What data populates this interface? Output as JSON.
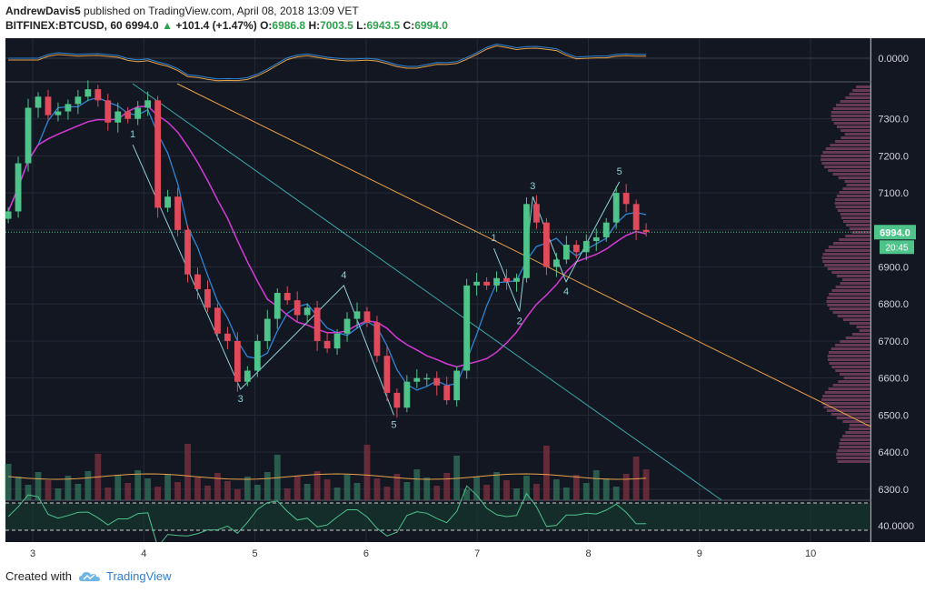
{
  "header": {
    "author": "AndrewDavis5",
    "published_text": "published on TradingView.com, April 08, 2018 13:09 VET"
  },
  "symbol_line": {
    "symbol": "BITFINEX:BTCUSD, 60",
    "last": "6994.0",
    "arrow": "▲",
    "change": "+101.4 (+1.47%)",
    "o_label": "O:",
    "o_value": "6986.8",
    "h_label": "H:",
    "h_value": "7003.5",
    "l_label": "L:",
    "l_value": "6943.5",
    "c_label": "C:",
    "c_value": "6994.0"
  },
  "footer": {
    "created_with": "Created with",
    "brand": "TradingView"
  },
  "colors": {
    "background": "#131722",
    "up": "#4ec38a",
    "down": "#e04a5a",
    "ma_fast": "#2f86d8",
    "ma_slow": "#d63ad6",
    "trend_orange": "#e8a24a",
    "trend_teal": "#3aa9a9",
    "wave": "#8fd0d8",
    "price_badge": "#4ec38a"
  },
  "chart_data": {
    "type": "candlestick",
    "symbol": "BITFINEX:BTCUSD",
    "timeframe": "60",
    "x_ticks": [
      "3",
      "4",
      "5",
      "6",
      "7",
      "8",
      "9",
      "10"
    ],
    "x_tick_days": [
      3,
      4,
      5,
      6,
      7,
      8,
      9,
      10
    ],
    "x_range": [
      2.75,
      10.6
    ],
    "price_ticks": [
      "7300.0",
      "7200.0",
      "7100.0",
      "7000.0",
      "6900.0",
      "6800.0",
      "6700.0",
      "6600.0",
      "6500.0",
      "6400.0",
      "6300.0"
    ],
    "price_range": [
      6270,
      7395
    ],
    "last_price": "6994.0",
    "countdown": "20:45",
    "oscillator_top_tick": "0.0000",
    "oscillator_bottom_tick": "40.0000",
    "closes": [
      7050,
      7180,
      7330,
      7360,
      7310,
      7320,
      7340,
      7360,
      7380,
      7350,
      7290,
      7320,
      7300,
      7330,
      7350,
      7060,
      7090,
      7000,
      6880,
      6840,
      6790,
      6720,
      6700,
      6590,
      6620,
      6700,
      6760,
      6830,
      6810,
      6770,
      6790,
      6700,
      6680,
      6720,
      6760,
      6780,
      6750,
      6660,
      6560,
      6520,
      6590,
      6600,
      6600,
      6580,
      6540,
      6620,
      6850,
      6860,
      6850,
      6870,
      6860,
      6870,
      7070,
      7020,
      6900,
      6920,
      6960,
      6940,
      6970,
      6980,
      7020,
      7100,
      7070,
      7000,
      6994
    ],
    "elliott_wave_labels": [
      "1",
      "2",
      "3",
      "4",
      "5"
    ],
    "wave_points": [
      {
        "label": "1",
        "day": 3.9,
        "price": 7230
      },
      {
        "label": "3",
        "day": 4.87,
        "price": 6570
      },
      {
        "label": "4",
        "day": 5.8,
        "price": 6850
      },
      {
        "label": "5",
        "day": 6.25,
        "price": 6500
      },
      {
        "label": "1",
        "day": 7.15,
        "price": 6950
      },
      {
        "label": "2",
        "day": 7.38,
        "price": 6780
      },
      {
        "label": "3",
        "day": 7.5,
        "price": 7090
      },
      {
        "label": "4",
        "day": 7.8,
        "price": 6860
      },
      {
        "label": "5",
        "day": 8.28,
        "price": 7130
      }
    ],
    "trendlines": [
      {
        "color": "orange",
        "from": {
          "day": 4.3,
          "price": 7395
        },
        "to": {
          "day": 10.6,
          "price": 6460
        }
      },
      {
        "color": "teal",
        "from": {
          "day": 3.9,
          "price": 7395
        },
        "to": {
          "day": 9.2,
          "price": 6270
        }
      }
    ],
    "grid": true
  }
}
